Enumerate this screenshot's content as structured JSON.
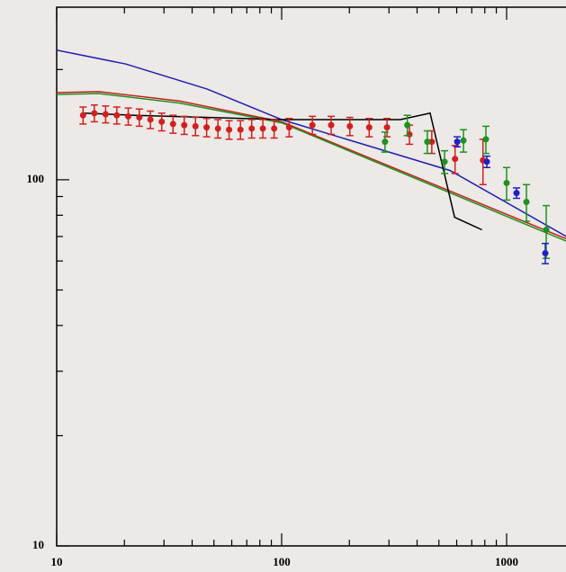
{
  "chart_data": {
    "type": "errorbar-loglog",
    "xlog": true,
    "ylog": true,
    "xlim": [
      10,
      1840
    ],
    "ylim": [
      10,
      296
    ],
    "xticks": [
      10,
      100,
      1000
    ],
    "yticks": [
      10,
      100
    ],
    "xminorticks": [
      20,
      30,
      40,
      50,
      60,
      70,
      80,
      90,
      200,
      300,
      400,
      500,
      600,
      700,
      800,
      900
    ],
    "yminorticks": [
      20,
      30,
      40,
      50,
      60,
      70,
      80,
      90,
      200
    ],
    "series": [
      {
        "type": "line",
        "color": "#2020b0",
        "x": [
          10,
          20.3,
          46.5,
          100,
          561,
          1840
        ],
        "values": [
          226,
          207,
          177,
          146,
          106,
          70
        ]
      },
      {
        "type": "line",
        "color": "#c02020",
        "x": [
          10,
          15.4,
          35.3,
          100,
          1840
        ],
        "values": [
          173,
          174,
          164,
          144,
          69
        ]
      },
      {
        "type": "line",
        "color": "#209020",
        "x": [
          10,
          15.4,
          35.3,
          100,
          1840
        ],
        "values": [
          171,
          172,
          162,
          143,
          68
        ]
      },
      {
        "type": "line",
        "color": "#000000",
        "x": [
          13.1,
          22.3,
          100,
          337,
          457,
          587,
          777
        ],
        "values": [
          152,
          150,
          146,
          146,
          152,
          79,
          73
        ]
      },
      {
        "type": "points",
        "color": "#d02020",
        "x": [
          13.1,
          14.7,
          16.5,
          18.5,
          20.8,
          23.3,
          26.1,
          29.3,
          32.9,
          36.9,
          41.4,
          46.4,
          52.1,
          58.4,
          65.6,
          73.6,
          82.5,
          92.6,
          108,
          137,
          166,
          201,
          245,
          294,
          370,
          465,
          590,
          785
        ],
        "values": [
          150,
          152,
          151,
          150,
          149,
          148,
          146,
          144,
          142,
          141,
          140,
          139,
          138,
          137,
          137,
          138,
          138,
          138,
          139,
          141,
          141,
          140,
          139,
          139,
          133,
          127,
          114,
          113
        ],
        "errors": [
          8,
          8,
          8,
          8,
          8,
          8,
          8,
          8,
          8,
          8,
          8,
          8,
          8,
          8,
          8,
          8,
          8,
          8,
          8,
          8,
          8,
          8,
          8,
          8,
          8,
          9,
          10,
          16
        ]
      },
      {
        "type": "points",
        "color": "#209020",
        "x": [
          288,
          362,
          444,
          530,
          643,
          809,
          1000,
          1225,
          1500
        ],
        "values": [
          127,
          141,
          127,
          112,
          128,
          129,
          98,
          87,
          73
        ],
        "errors": [
          8,
          9,
          9,
          8,
          9,
          11,
          10,
          10,
          12
        ]
      },
      {
        "type": "points",
        "color": "#2020c0",
        "x": [
          603,
          817,
          1107,
          1486
        ],
        "values": [
          127,
          112,
          92,
          63
        ],
        "errors": [
          4,
          4,
          3,
          4
        ]
      }
    ]
  }
}
